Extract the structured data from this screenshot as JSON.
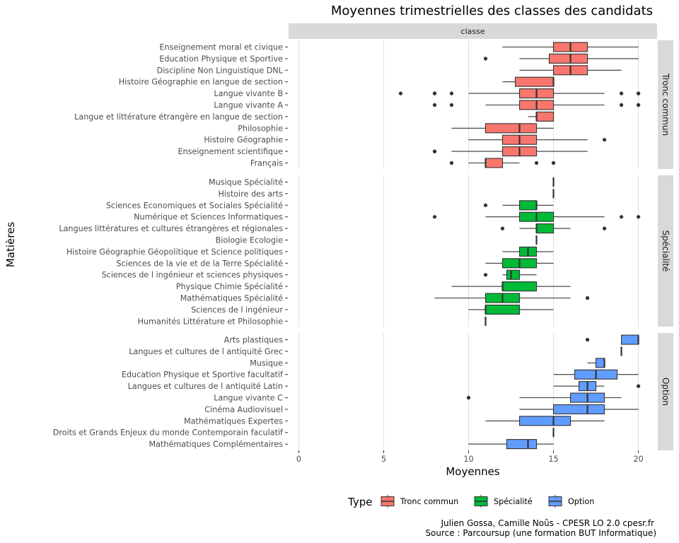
{
  "chart_data": {
    "type": "boxplot",
    "title": "Moyennes trimestrielles des classes des candidats",
    "strip_top": "classe",
    "xlabel": "Moyennes",
    "ylabel": "Matières",
    "xlim": [
      -0.6,
      21.1
    ],
    "x_ticks": [
      0,
      5,
      10,
      15,
      20
    ],
    "grid": true,
    "legend": {
      "position": "bottom",
      "title": "Type",
      "entries": [
        {
          "name": "Tronc commun",
          "color": "#F8766D"
        },
        {
          "name": "Spécialité",
          "color": "#00BA38"
        },
        {
          "name": "Option",
          "color": "#619CFF"
        }
      ]
    },
    "caption": [
      "Julien Gossa, Camille Noûs - CPESR LO 2.0 cpesr.fr",
      "Source : Parcoursup (une formation BUT Informatique)"
    ],
    "panels": [
      {
        "label": "Tronc commun",
        "color": "#F8766D",
        "rows": [
          {
            "label": "Enseignement moral et civique",
            "min": 12,
            "q1": 15,
            "median": 16,
            "q3": 17,
            "max": 20,
            "outliers": []
          },
          {
            "label": "Education Physique et Sportive",
            "min": 13,
            "q1": 14.75,
            "median": 16,
            "q3": 17,
            "max": 20,
            "outliers": [
              11
            ]
          },
          {
            "label": "Discipline Non Linguistique  DNL",
            "min": 13,
            "q1": 15,
            "median": 16,
            "q3": 17,
            "max": 19,
            "outliers": []
          },
          {
            "label": "Histoire Géographie en langue de section",
            "min": 12,
            "q1": 12.75,
            "median": 15,
            "q3": 15,
            "max": 15,
            "outliers": []
          },
          {
            "label": "Langue vivante B",
            "min": 10,
            "q1": 13,
            "median": 14,
            "q3": 15,
            "max": 18,
            "outliers": [
              6,
              8,
              8,
              9,
              19,
              20,
              20
            ]
          },
          {
            "label": "Langue vivante A",
            "min": 11,
            "q1": 13,
            "median": 14,
            "q3": 15,
            "max": 18,
            "outliers": [
              8,
              9,
              19,
              20,
              20
            ]
          },
          {
            "label": "Langue et littérature étrangère en langue de section",
            "min": 13.5,
            "q1": 14,
            "median": 14,
            "q3": 15,
            "max": 15,
            "outliers": []
          },
          {
            "label": "Philosophie",
            "min": 9,
            "q1": 11,
            "median": 13,
            "q3": 14,
            "max": 15,
            "outliers": []
          },
          {
            "label": "Histoire Géographie",
            "min": 10,
            "q1": 12,
            "median": 13,
            "q3": 14,
            "max": 17,
            "outliers": [
              18
            ]
          },
          {
            "label": "Enseignement scientifique",
            "min": 9,
            "q1": 12,
            "median": 13,
            "q3": 14,
            "max": 17,
            "outliers": [
              8,
              8
            ]
          },
          {
            "label": "Français",
            "min": 10,
            "q1": 11,
            "median": 11,
            "q3": 12,
            "max": 13,
            "outliers": [
              9,
              14,
              15
            ]
          }
        ]
      },
      {
        "label": "Spécialité",
        "color": "#00BA38",
        "rows": [
          {
            "label": "Musique Spécialité",
            "min": 15,
            "q1": 15,
            "median": 15,
            "q3": 15,
            "max": 15,
            "outliers": []
          },
          {
            "label": "Histoire des arts",
            "min": 15,
            "q1": 15,
            "median": 15,
            "q3": 15,
            "max": 15,
            "outliers": []
          },
          {
            "label": "Sciences Economiques et Sociales Spécialité",
            "min": 12,
            "q1": 13,
            "median": 14,
            "q3": 14,
            "max": 15,
            "outliers": [
              11
            ]
          },
          {
            "label": "Numérique et Sciences Informatiques",
            "min": 11,
            "q1": 13,
            "median": 14,
            "q3": 15,
            "max": 18,
            "outliers": [
              8,
              19,
              20
            ]
          },
          {
            "label": "Langues  littératures et cultures étrangères et régionales",
            "min": 13,
            "q1": 14,
            "median": 14,
            "q3": 15,
            "max": 16,
            "outliers": [
              12,
              18
            ]
          },
          {
            "label": "Biologie Ecologie",
            "min": 14,
            "q1": 14,
            "median": 14,
            "q3": 14,
            "max": 14,
            "outliers": []
          },
          {
            "label": "Histoire Géographie  Géopolitique et Science politiques",
            "min": 12,
            "q1": 13,
            "median": 13.5,
            "q3": 14,
            "max": 15,
            "outliers": []
          },
          {
            "label": "Sciences de la vie et de la Terre Spécialité",
            "min": 11,
            "q1": 12,
            "median": 13,
            "q3": 14,
            "max": 15,
            "outliers": []
          },
          {
            "label": "Sciences de l ingénieur et sciences physiques",
            "min": 12,
            "q1": 12.25,
            "median": 12.5,
            "q3": 13,
            "max": 14,
            "outliers": [
              11
            ]
          },
          {
            "label": "Physique Chimie Spécialité",
            "min": 9,
            "q1": 12,
            "median": 12,
            "q3": 14,
            "max": 16,
            "outliers": []
          },
          {
            "label": "Mathématiques Spécialité",
            "min": 8,
            "q1": 11,
            "median": 12,
            "q3": 13,
            "max": 16,
            "outliers": [
              17
            ]
          },
          {
            "label": "Sciences de l ingénieur",
            "min": 10,
            "q1": 11,
            "median": 11,
            "q3": 13,
            "max": 15,
            "outliers": []
          },
          {
            "label": "Humanités  Littérature et Philosophie",
            "min": 11,
            "q1": 11,
            "median": 11,
            "q3": 11,
            "max": 11,
            "outliers": []
          }
        ]
      },
      {
        "label": "Option",
        "color": "#619CFF",
        "rows": [
          {
            "label": "Arts plastiques",
            "min": 19,
            "q1": 19,
            "median": 20,
            "q3": 20,
            "max": 20,
            "outliers": [
              17
            ]
          },
          {
            "label": "Langues et cultures de l antiquité   Grec",
            "min": 19,
            "q1": 19,
            "median": 19,
            "q3": 19,
            "max": 19,
            "outliers": []
          },
          {
            "label": "Musique",
            "min": 17,
            "q1": 17.5,
            "median": 18,
            "q3": 18,
            "max": 18,
            "outliers": []
          },
          {
            "label": "Education Physique et Sportive  facultatif",
            "min": 15,
            "q1": 16.25,
            "median": 17.5,
            "q3": 18.75,
            "max": 20,
            "outliers": []
          },
          {
            "label": "Langues et cultures de l antiquité   Latin",
            "min": 15,
            "q1": 16.5,
            "median": 17,
            "q3": 17.5,
            "max": 18,
            "outliers": [
              20
            ]
          },
          {
            "label": "Langue vivante C",
            "min": 13,
            "q1": 16,
            "median": 17,
            "q3": 18,
            "max": 19,
            "outliers": [
              10
            ]
          },
          {
            "label": "Cinéma Audiovisuel",
            "min": 13,
            "q1": 15,
            "median": 17,
            "q3": 18,
            "max": 20,
            "outliers": []
          },
          {
            "label": "Mathématiques Expertes",
            "min": 11,
            "q1": 13,
            "median": 15,
            "q3": 16,
            "max": 18,
            "outliers": []
          },
          {
            "label": "Droits et Grands Enjeux du monde Contemporain faculatif",
            "min": 15,
            "q1": 15,
            "median": 15,
            "q3": 15,
            "max": 15,
            "outliers": []
          },
          {
            "label": "Mathématiques Complémentaires",
            "min": 10,
            "q1": 12.25,
            "median": 13.5,
            "q3": 14,
            "max": 15,
            "outliers": []
          }
        ]
      }
    ]
  }
}
